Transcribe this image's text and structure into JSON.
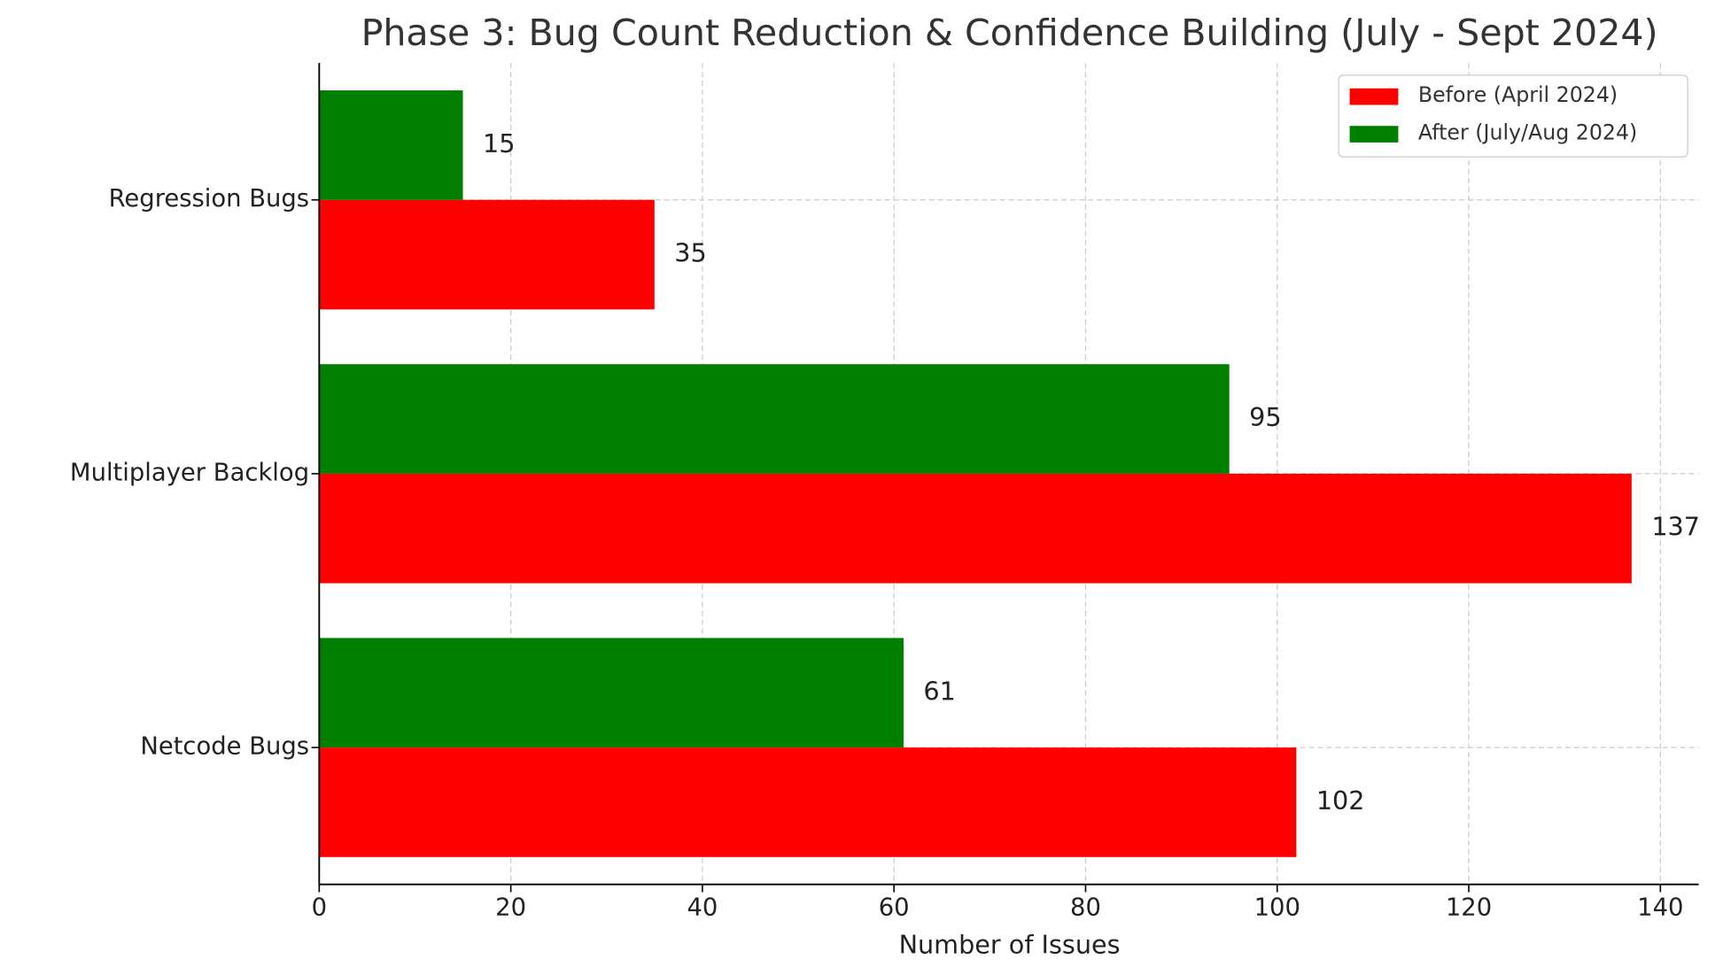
{
  "chart_data": {
    "type": "bar",
    "orientation": "horizontal",
    "title": "Phase 3: Bug Count Reduction & Confidence Building (July - Sept 2024)",
    "x_label": "Number of Issues",
    "categories": [
      "Regression Bugs",
      "Multiplayer Backlog",
      "Netcode Bugs"
    ],
    "series": [
      {
        "name": "Before (April 2024)",
        "color": "#ff0000",
        "values": [
          35,
          137,
          102
        ]
      },
      {
        "name": "After (July/Aug 2024)",
        "color": "#008000",
        "values": [
          15,
          95,
          61
        ]
      }
    ],
    "xlim": [
      0,
      144
    ],
    "xticks": [
      0,
      20,
      40,
      60,
      80,
      100,
      120,
      140
    ],
    "grid": true,
    "legend": "upper right"
  }
}
